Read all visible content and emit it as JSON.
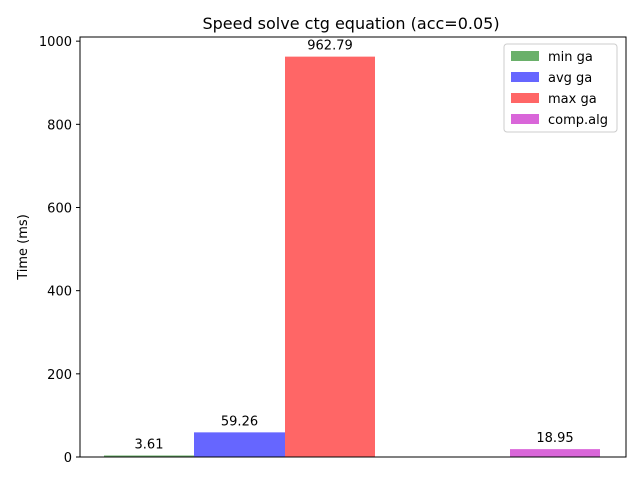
{
  "chart_data": {
    "type": "bar",
    "title": "Speed solve ctg equation (acc=0.05)",
    "xlabel": "",
    "ylabel": "Time (ms)",
    "ylim": [
      0,
      1010
    ],
    "yticks": [
      0,
      200,
      400,
      600,
      800,
      1000
    ],
    "grid": false,
    "legend_position": "top-right",
    "series": [
      {
        "name": "min ga",
        "value": 3.61,
        "label": "3.61",
        "color": "#6ab06a"
      },
      {
        "name": "avg ga",
        "value": 59.26,
        "label": "59.26",
        "color": "#6666ff"
      },
      {
        "name": "max ga",
        "value": 962.79,
        "label": "962.79",
        "color": "#ff6666"
      },
      {
        "name": "comp.alg",
        "value": 18.95,
        "label": "18.95",
        "color": "#d966d9"
      }
    ]
  }
}
